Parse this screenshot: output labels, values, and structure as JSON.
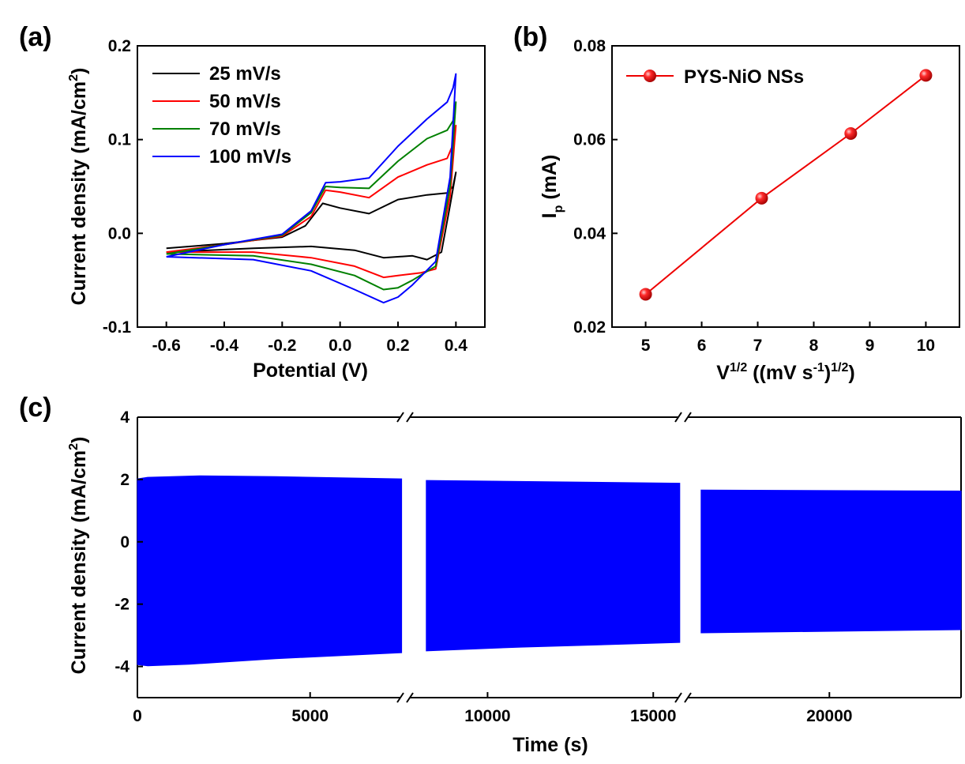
{
  "panels": {
    "a": "(a)",
    "b": "(b)",
    "c": "(c)"
  },
  "chart_data": [
    {
      "panel": "(a)",
      "type": "line",
      "xlabel": "Potential (V)",
      "ylabel_main": "Current density (mA/cm",
      "ylabel_sup": "2",
      "ylabel_end": ")",
      "xlim": [
        -0.7,
        0.5
      ],
      "ylim": [
        -0.1,
        0.2
      ],
      "xticks": [
        -0.6,
        -0.4,
        -0.2,
        0.0,
        0.2,
        0.4
      ],
      "xtick_labels": [
        "-0.6",
        "-0.4",
        "-0.2",
        "0.0",
        "0.2",
        "0.4"
      ],
      "yticks": [
        -0.1,
        0.0,
        0.1,
        0.2
      ],
      "ytick_labels": [
        "-0.1",
        "0.0",
        "0.1",
        "0.2"
      ],
      "legend_position": "top-left",
      "series": [
        {
          "name": "25 mV/s",
          "color": "#000000",
          "anodic": [
            [
              -0.6,
              -0.016
            ],
            [
              -0.4,
              -0.011
            ],
            [
              -0.2,
              -0.004
            ],
            [
              -0.12,
              0.008
            ],
            [
              -0.06,
              0.032
            ],
            [
              0.0,
              0.027
            ],
            [
              0.1,
              0.021
            ],
            [
              0.2,
              0.036
            ],
            [
              0.3,
              0.041
            ],
            [
              0.37,
              0.043
            ],
            [
              0.39,
              0.05
            ],
            [
              0.4,
              0.065
            ]
          ],
          "cathodic": [
            [
              0.4,
              0.065
            ],
            [
              0.38,
              0.03
            ],
            [
              0.35,
              -0.02
            ],
            [
              0.3,
              -0.028
            ],
            [
              0.25,
              -0.024
            ],
            [
              0.15,
              -0.026
            ],
            [
              0.05,
              -0.018
            ],
            [
              -0.1,
              -0.014
            ],
            [
              -0.3,
              -0.016
            ],
            [
              -0.6,
              -0.02
            ]
          ]
        },
        {
          "name": "50 mV/s",
          "color": "#ff0000",
          "anodic": [
            [
              -0.6,
              -0.02
            ],
            [
              -0.4,
              -0.012
            ],
            [
              -0.2,
              -0.003
            ],
            [
              -0.1,
              0.018
            ],
            [
              -0.05,
              0.046
            ],
            [
              0.0,
              0.044
            ],
            [
              0.1,
              0.038
            ],
            [
              0.2,
              0.06
            ],
            [
              0.3,
              0.073
            ],
            [
              0.37,
              0.08
            ],
            [
              0.39,
              0.095
            ],
            [
              0.4,
              0.115
            ]
          ],
          "cathodic": [
            [
              0.4,
              0.115
            ],
            [
              0.38,
              0.04
            ],
            [
              0.33,
              -0.038
            ],
            [
              0.28,
              -0.042
            ],
            [
              0.2,
              -0.045
            ],
            [
              0.15,
              -0.047
            ],
            [
              0.05,
              -0.035
            ],
            [
              -0.1,
              -0.026
            ],
            [
              -0.3,
              -0.02
            ],
            [
              -0.6,
              -0.02
            ]
          ]
        },
        {
          "name": "70 mV/s",
          "color": "#008000",
          "anodic": [
            [
              -0.6,
              -0.022
            ],
            [
              -0.4,
              -0.012
            ],
            [
              -0.2,
              -0.002
            ],
            [
              -0.1,
              0.022
            ],
            [
              -0.05,
              0.05
            ],
            [
              0.0,
              0.049
            ],
            [
              0.1,
              0.048
            ],
            [
              0.2,
              0.077
            ],
            [
              0.3,
              0.101
            ],
            [
              0.37,
              0.11
            ],
            [
              0.39,
              0.12
            ],
            [
              0.4,
              0.14
            ]
          ],
          "cathodic": [
            [
              0.4,
              0.14
            ],
            [
              0.38,
              0.05
            ],
            [
              0.33,
              -0.035
            ],
            [
              0.25,
              -0.05
            ],
            [
              0.2,
              -0.058
            ],
            [
              0.15,
              -0.06
            ],
            [
              0.05,
              -0.045
            ],
            [
              -0.1,
              -0.033
            ],
            [
              -0.3,
              -0.024
            ],
            [
              -0.6,
              -0.022
            ]
          ]
        },
        {
          "name": "100 mV/s",
          "color": "#0000ff",
          "anodic": [
            [
              -0.6,
              -0.025
            ],
            [
              -0.4,
              -0.012
            ],
            [
              -0.2,
              -0.001
            ],
            [
              -0.1,
              0.024
            ],
            [
              -0.05,
              0.054
            ],
            [
              0.0,
              0.055
            ],
            [
              0.1,
              0.059
            ],
            [
              0.2,
              0.093
            ],
            [
              0.3,
              0.122
            ],
            [
              0.37,
              0.14
            ],
            [
              0.39,
              0.155
            ],
            [
              0.4,
              0.17
            ]
          ],
          "cathodic": [
            [
              0.4,
              0.17
            ],
            [
              0.38,
              0.06
            ],
            [
              0.33,
              -0.03
            ],
            [
              0.25,
              -0.055
            ],
            [
              0.2,
              -0.068
            ],
            [
              0.15,
              -0.074
            ],
            [
              0.05,
              -0.06
            ],
            [
              -0.1,
              -0.04
            ],
            [
              -0.3,
              -0.028
            ],
            [
              -0.6,
              -0.025
            ]
          ]
        }
      ]
    },
    {
      "panel": "(b)",
      "type": "line",
      "xlabel_main": "V",
      "xlabel_sup1": "1/2",
      "xlabel_mid": " ((mV s",
      "xlabel_sup2": "-1",
      "xlabel_close": ")",
      "xlabel_sup3": "1/2",
      "xlabel_end": ")",
      "ylabel_main": "I",
      "ylabel_sub": "p",
      "ylabel_end": " (mA)",
      "xlim": [
        4.4,
        10.6
      ],
      "ylim": [
        0.02,
        0.08
      ],
      "xticks": [
        5,
        6,
        7,
        8,
        9,
        10
      ],
      "xtick_labels": [
        "5",
        "6",
        "7",
        "8",
        "9",
        "10"
      ],
      "yticks": [
        0.02,
        0.04,
        0.06,
        0.08
      ],
      "ytick_labels": [
        "0.02",
        "0.04",
        "0.06",
        "0.08"
      ],
      "legend_position": "top-left",
      "series": [
        {
          "name": "PYS-NiO NSs",
          "color": "#ee0000",
          "x": [
            5.0,
            7.07,
            8.66,
            10.0
          ],
          "y": [
            0.027,
            0.0475,
            0.0613,
            0.0737
          ]
        }
      ]
    },
    {
      "panel": "(c)",
      "type": "area",
      "xlabel": "Time (s)",
      "ylabel_main": "Current density (mA/cm",
      "ylabel_sup": "2",
      "ylabel_end": ")",
      "ylim": [
        -5,
        4
      ],
      "yticks": [
        -4,
        -2,
        0,
        2,
        4
      ],
      "ytick_labels": [
        "-4",
        "-2",
        "0",
        "2",
        "4"
      ],
      "xticks": [
        0,
        5000,
        10000,
        15000,
        20000
      ],
      "xtick_labels": [
        "0",
        "5000",
        "10000",
        "15000",
        "20000"
      ],
      "axis_breaks": [
        7750,
        15900
      ],
      "fill_color": "#0000ff",
      "segments": [
        {
          "x_start": 0,
          "x_end": 7650,
          "top": [
            [
              0,
              2.02
            ],
            [
              300,
              2.07
            ],
            [
              1800,
              2.12
            ],
            [
              4000,
              2.09
            ],
            [
              7650,
              2.02
            ]
          ],
          "bottom": [
            [
              0,
              -3.94
            ],
            [
              300,
              -3.98
            ],
            [
              1500,
              -3.93
            ],
            [
              4000,
              -3.75
            ],
            [
              7650,
              -3.56
            ]
          ]
        },
        {
          "x_start": 8150,
          "x_end": 15800,
          "top": [
            [
              8150,
              1.97
            ],
            [
              15800,
              1.88
            ]
          ],
          "bottom": [
            [
              8150,
              -3.5
            ],
            [
              11000,
              -3.38
            ],
            [
              15800,
              -3.23
            ]
          ]
        },
        {
          "x_start": 16200,
          "x_end": 23900,
          "top": [
            [
              16200,
              1.66
            ],
            [
              23900,
              1.63
            ]
          ],
          "bottom": [
            [
              16200,
              -2.92
            ],
            [
              23900,
              -2.82
            ]
          ]
        }
      ]
    }
  ]
}
